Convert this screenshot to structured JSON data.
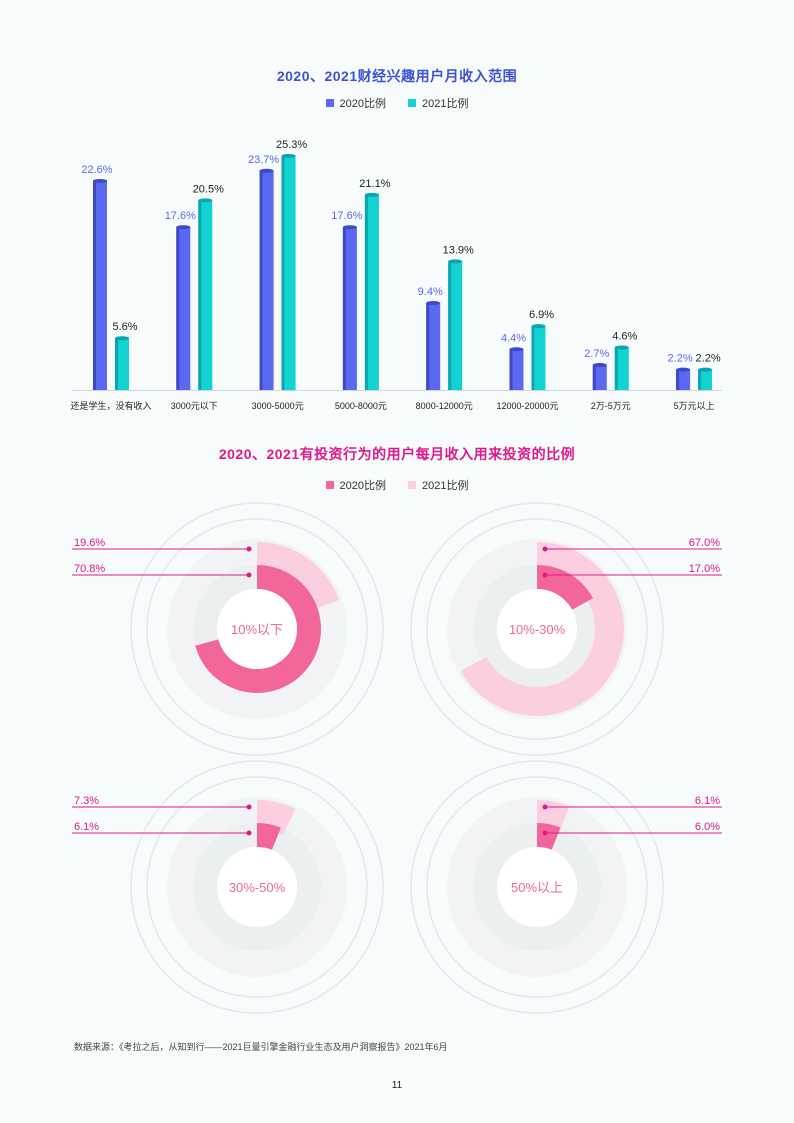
{
  "colors": {
    "bar_2020": "#5b69f0",
    "bar_2020_dark": "#3d49c8",
    "bar_2021": "#14d2d2",
    "bar_2021_dark": "#0aa6ad",
    "donut_2020": "#f2669c",
    "donut_2021": "#fbcfe0",
    "title_blue": "#3d52d5",
    "title_magenta": "#e0198a",
    "leader_line": "#e0198a"
  },
  "chart_data": [
    {
      "type": "bar",
      "title": "2020、2021财经兴趣用户月收入范围",
      "categories": [
        "还是学生，没有收入",
        "3000元以下",
        "3000-5000元",
        "5000-8000元",
        "8000-12000元",
        "12000-20000元",
        "2万-5万元",
        "5万元以上"
      ],
      "series": [
        {
          "name": "2020比例",
          "values": [
            22.6,
            17.6,
            23.7,
            17.6,
            9.4,
            4.4,
            2.7,
            2.2
          ],
          "labels": [
            "22.6%",
            "17.6%",
            "23.7%",
            "17.6%",
            "9.4%",
            "4.4%",
            "2.7%",
            "2.2%"
          ]
        },
        {
          "name": "2021比例",
          "values": [
            5.6,
            20.5,
            25.3,
            21.1,
            13.9,
            6.9,
            4.6,
            2.2
          ],
          "labels": [
            "5.6%",
            "20.5%",
            "25.3%",
            "21.1%",
            "13.9%",
            "6.9%",
            "4.6%",
            "2.2%"
          ]
        }
      ],
      "ylim": [
        0,
        27
      ],
      "grid": false,
      "legend": "top"
    },
    {
      "type": "pie",
      "subtype": "concentric-donut",
      "title": "2020、2021有投资行为的用户每月收入用来投资的比例",
      "series_names": [
        "2020比例",
        "2021比例"
      ],
      "panels": [
        {
          "center_label": "10%以下",
          "value_2020": 70.8,
          "value_2021": 19.6,
          "label_2020": "70.8%",
          "label_2021": "19.6%",
          "labels_side": "left"
        },
        {
          "center_label": "10%-30%",
          "value_2020": 17.0,
          "value_2021": 67.0,
          "label_2020": "17.0%",
          "label_2021": "67.0%",
          "labels_side": "right"
        },
        {
          "center_label": "30%-50%",
          "value_2020": 6.1,
          "value_2021": 7.3,
          "label_2020": "6.1%",
          "label_2021": "7.3%",
          "labels_side": "left"
        },
        {
          "center_label": "50%以上",
          "value_2020": 6.0,
          "value_2021": 6.1,
          "label_2020": "6.0%",
          "label_2021": "6.1%",
          "labels_side": "right"
        }
      ],
      "legend": "top"
    }
  ],
  "footnote": "数据来源：《考拉之后，从知到行——2021巨量引擎金融行业生态及用户洞察报告》2021年6月",
  "page_number": "11"
}
